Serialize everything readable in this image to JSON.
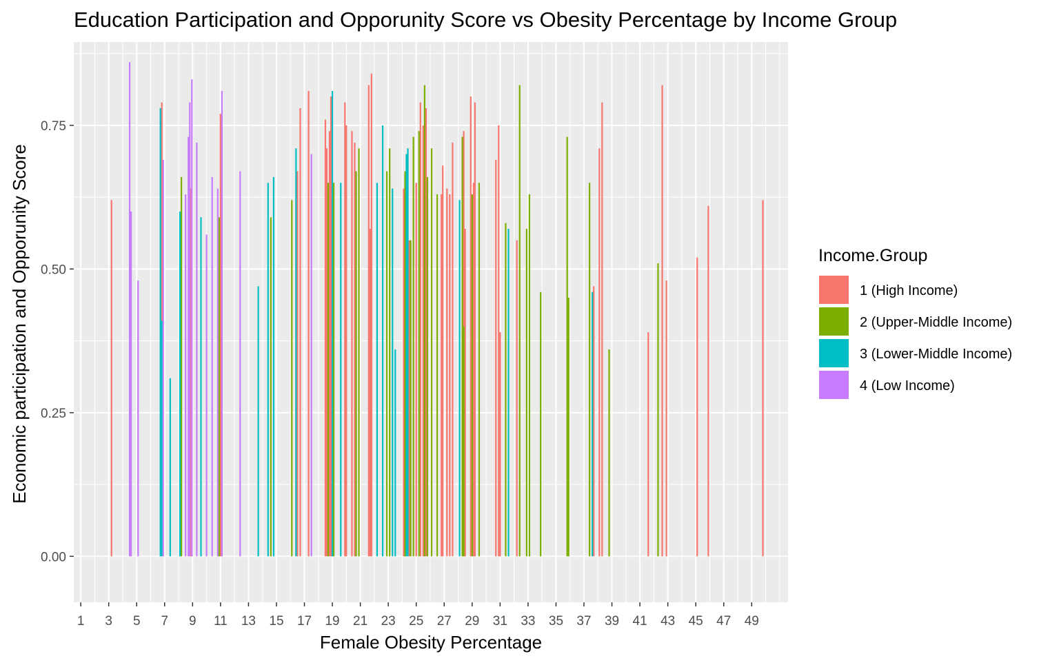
{
  "chart_data": {
    "type": "bar",
    "title": "Education Participation and Opporunity Score vs Obesity Percentage by Income Group",
    "xlabel": "Female Obesity Percentage",
    "ylabel": "Economic participation and Opporunity Score",
    "xlim": [
      0.5,
      51.6
    ],
    "ylim": [
      -0.08,
      0.895
    ],
    "x_ticks": [
      1,
      3,
      5,
      7,
      9,
      11,
      13,
      15,
      17,
      19,
      21,
      23,
      25,
      27,
      29,
      31,
      33,
      35,
      37,
      39,
      41,
      43,
      45,
      47,
      49
    ],
    "y_ticks": [
      0,
      0.25,
      0.5,
      0.75
    ],
    "y_tick_labels": [
      "0.00",
      "0.25",
      "0.50",
      "0.75"
    ],
    "grid": true,
    "panel_background": "#ebebeb",
    "legend": {
      "title": "Income.Group",
      "position": "right",
      "entries": [
        {
          "label": "1 (High Income)",
          "color": "#F8766D"
        },
        {
          "label": "2 (Upper-Middle Income)",
          "color": "#7CAE00"
        },
        {
          "label": "3 (Lower-Middle Income)",
          "color": "#00BFC4"
        },
        {
          "label": "4 (Low Income)",
          "color": "#C77CFF"
        }
      ]
    },
    "series": [
      {
        "name": "1 (High Income)",
        "color": "#F8766D",
        "points": [
          [
            3.2,
            0.62
          ],
          [
            6.8,
            0.79
          ],
          [
            8.9,
            0.64
          ],
          [
            11.0,
            0.77
          ],
          [
            16.5,
            0.67
          ],
          [
            16.7,
            0.78
          ],
          [
            17.3,
            0.81
          ],
          [
            18.5,
            0.76
          ],
          [
            18.6,
            0.71
          ],
          [
            18.8,
            0.74
          ],
          [
            18.9,
            0.8
          ],
          [
            19.9,
            0.79
          ],
          [
            20.0,
            0.75
          ],
          [
            20.4,
            0.74
          ],
          [
            20.6,
            0.72
          ],
          [
            21.6,
            0.82
          ],
          [
            21.7,
            0.57
          ],
          [
            21.8,
            0.84
          ],
          [
            24.1,
            0.64
          ],
          [
            24.3,
            0.67
          ],
          [
            24.5,
            0.55
          ],
          [
            25.0,
            0.65
          ],
          [
            25.3,
            0.79
          ],
          [
            25.5,
            0.75
          ],
          [
            25.7,
            0.78
          ],
          [
            26.8,
            0.63
          ],
          [
            26.9,
            0.68
          ],
          [
            27.2,
            0.64
          ],
          [
            27.4,
            0.63
          ],
          [
            27.6,
            0.72
          ],
          [
            28.4,
            0.74
          ],
          [
            28.5,
            0.57
          ],
          [
            28.9,
            0.8
          ],
          [
            29.1,
            0.65
          ],
          [
            29.2,
            0.79
          ],
          [
            30.7,
            0.69
          ],
          [
            30.9,
            0.75
          ],
          [
            31.0,
            0.39
          ],
          [
            32.2,
            0.55
          ],
          [
            37.7,
            0.47
          ],
          [
            38.1,
            0.71
          ],
          [
            38.3,
            0.79
          ],
          [
            41.6,
            0.39
          ],
          [
            42.6,
            0.82
          ],
          [
            42.9,
            0.48
          ],
          [
            45.1,
            0.52
          ],
          [
            45.9,
            0.61
          ],
          [
            49.8,
            0.62
          ]
        ]
      },
      {
        "name": "2 (Upper-Middle Income)",
        "color": "#7CAE00",
        "points": [
          [
            8.2,
            0.66
          ],
          [
            10.9,
            0.59
          ],
          [
            14.6,
            0.59
          ],
          [
            16.1,
            0.62
          ],
          [
            18.7,
            0.65
          ],
          [
            19.1,
            0.65
          ],
          [
            20.7,
            0.67
          ],
          [
            20.9,
            0.71
          ],
          [
            22.9,
            0.67
          ],
          [
            23.1,
            0.71
          ],
          [
            24.2,
            0.67
          ],
          [
            24.6,
            0.55
          ],
          [
            24.8,
            0.73
          ],
          [
            25.2,
            0.74
          ],
          [
            25.6,
            0.82
          ],
          [
            25.8,
            0.66
          ],
          [
            26.1,
            0.71
          ],
          [
            26.5,
            0.63
          ],
          [
            28.3,
            0.73
          ],
          [
            28.4,
            0.4
          ],
          [
            29.0,
            0.63
          ],
          [
            29.5,
            0.65
          ],
          [
            31.4,
            0.58
          ],
          [
            32.4,
            0.82
          ],
          [
            32.9,
            0.57
          ],
          [
            33.1,
            0.63
          ],
          [
            33.9,
            0.46
          ],
          [
            35.8,
            0.73
          ],
          [
            35.9,
            0.45
          ],
          [
            37.4,
            0.65
          ],
          [
            38.8,
            0.36
          ],
          [
            42.3,
            0.51
          ]
        ]
      },
      {
        "name": "3 (Lower-Middle Income)",
        "color": "#00BFC4",
        "points": [
          [
            6.8,
            0.41
          ],
          [
            6.7,
            0.78
          ],
          [
            7.4,
            0.31
          ],
          [
            8.1,
            0.6
          ],
          [
            9.6,
            0.59
          ],
          [
            13.7,
            0.47
          ],
          [
            14.4,
            0.65
          ],
          [
            14.8,
            0.66
          ],
          [
            16.4,
            0.71
          ],
          [
            19.0,
            0.81
          ],
          [
            19.6,
            0.65
          ],
          [
            22.2,
            0.65
          ],
          [
            22.6,
            0.75
          ],
          [
            23.3,
            0.64
          ],
          [
            23.5,
            0.36
          ],
          [
            24.3,
            0.7
          ],
          [
            24.4,
            0.71
          ],
          [
            28.1,
            0.62
          ],
          [
            31.6,
            0.57
          ],
          [
            37.6,
            0.46
          ]
        ]
      },
      {
        "name": "4 (Low Income)",
        "color": "#C77CFF",
        "points": [
          [
            4.5,
            0.86
          ],
          [
            4.6,
            0.6
          ],
          [
            5.1,
            0.48
          ],
          [
            6.9,
            0.69
          ],
          [
            8.5,
            0.63
          ],
          [
            8.7,
            0.73
          ],
          [
            8.8,
            0.79
          ],
          [
            8.95,
            0.83
          ],
          [
            9.3,
            0.72
          ],
          [
            10.0,
            0.56
          ],
          [
            10.4,
            0.66
          ],
          [
            10.8,
            0.64
          ],
          [
            11.1,
            0.81
          ],
          [
            12.4,
            0.67
          ],
          [
            17.5,
            0.7
          ]
        ]
      }
    ]
  }
}
